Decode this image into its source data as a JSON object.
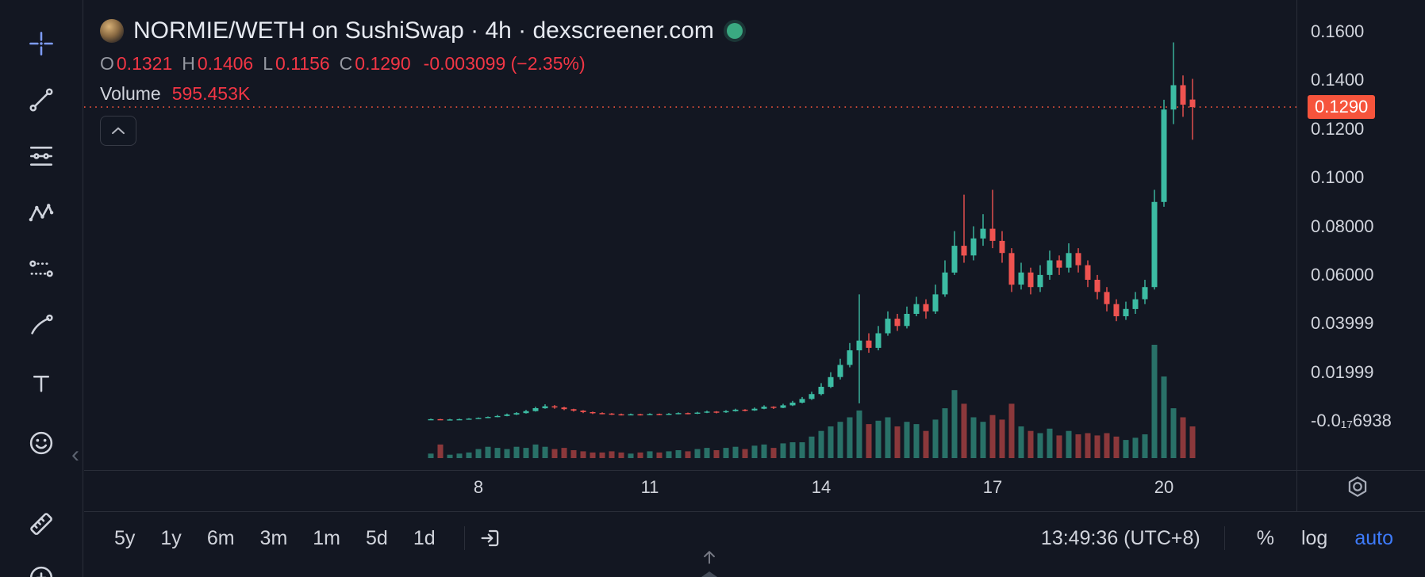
{
  "colors": {
    "bg": "#131722",
    "border": "#2a2e39",
    "text": "#d1d4dc",
    "text_dim": "#9598a1",
    "text_bright": "#e6e9f0",
    "up": "#3cbca3",
    "down": "#ef5350",
    "value_red": "#f23645",
    "accent_red": "#f6543c",
    "accent_blue": "#3e7bfa",
    "status_dot": "#3aa981",
    "tool_active": "#7e9cf7"
  },
  "header": {
    "title": "NORMIE/WETH on SushiSwap · 4h · dexscreener.com",
    "ohlc": [
      {
        "label": "O",
        "value": "0.1321"
      },
      {
        "label": "H",
        "value": "0.1406"
      },
      {
        "label": "L",
        "value": "0.1156"
      },
      {
        "label": "C",
        "value": "0.1290"
      }
    ],
    "change": "-0.003099 (−2.35%)",
    "volume_label": "Volume",
    "volume_value": "595.453K"
  },
  "left_toolbar": {
    "collapse_glyph": "‹",
    "tools": [
      {
        "name": "crosshair",
        "active": true
      },
      {
        "name": "trend-line",
        "active": false
      },
      {
        "name": "fib-retracement",
        "active": false
      },
      {
        "name": "xabcd-pattern",
        "active": false
      },
      {
        "name": "prediction-measurement",
        "active": false
      },
      {
        "name": "brush",
        "active": false
      },
      {
        "name": "text-tool",
        "active": false
      },
      {
        "name": "emoji",
        "active": false
      },
      {
        "name": "ruler",
        "active": false
      },
      {
        "name": "zoom-in",
        "active": false
      }
    ]
  },
  "toolbar": {
    "ranges": [
      "5y",
      "1y",
      "6m",
      "3m",
      "1m",
      "5d",
      "1d"
    ],
    "clock": "13:49:36 (UTC+8)",
    "percent_label": "%",
    "log_label": "log",
    "auto_label": "auto"
  },
  "chart_data": {
    "type": "candlestick",
    "title": "NORMIE/WETH on SushiSwap · 4h",
    "interval": "4h",
    "grid": false,
    "price_axis": {
      "min": 0,
      "max": 0.16,
      "ticks": [
        {
          "label": "0.1600",
          "price": 0.16
        },
        {
          "label": "0.1400",
          "price": 0.14
        },
        {
          "label": "0.1200",
          "price": 0.12
        },
        {
          "label": "0.1000",
          "price": 0.1
        },
        {
          "label": "0.08000",
          "price": 0.08
        },
        {
          "label": "0.06000",
          "price": 0.06
        },
        {
          "label": "0.03999",
          "price": 0.04
        },
        {
          "label": "0.01999",
          "price": 0.02
        },
        {
          "label": "-0.0₁₇6938",
          "price": 0.0
        }
      ]
    },
    "time_axis": {
      "ticks": [
        {
          "label": "8",
          "day": 8
        },
        {
          "label": "11",
          "day": 11
        },
        {
          "label": "14",
          "day": 14
        },
        {
          "label": "17",
          "day": 17
        },
        {
          "label": "20",
          "day": 20
        }
      ]
    },
    "current_price": {
      "label": "0.1290",
      "price": 0.129
    },
    "day_start": 7.1667,
    "candles_per_day": 6,
    "candles": [
      [
        0.0005,
        0.0009,
        0.0004,
        0.0007,
        4
      ],
      [
        0.0007,
        0.0008,
        0.0004,
        0.0005,
        12
      ],
      [
        0.0005,
        0.0008,
        0.0004,
        0.0006,
        3
      ],
      [
        0.0006,
        0.0009,
        0.0005,
        0.0007,
        4
      ],
      [
        0.0007,
        0.0011,
        0.0006,
        0.0009,
        5
      ],
      [
        0.0009,
        0.0014,
        0.0008,
        0.0012,
        8
      ],
      [
        0.0012,
        0.0018,
        0.0011,
        0.0016,
        10
      ],
      [
        0.0016,
        0.0024,
        0.0015,
        0.002,
        9
      ],
      [
        0.002,
        0.003,
        0.0019,
        0.0026,
        8
      ],
      [
        0.0026,
        0.0036,
        0.0024,
        0.0032,
        10
      ],
      [
        0.0032,
        0.0045,
        0.003,
        0.004,
        9
      ],
      [
        0.004,
        0.0058,
        0.0038,
        0.0052,
        12
      ],
      [
        0.0052,
        0.0068,
        0.005,
        0.006,
        10
      ],
      [
        0.006,
        0.0065,
        0.005,
        0.0055,
        8
      ],
      [
        0.0055,
        0.0058,
        0.0044,
        0.0048,
        9
      ],
      [
        0.0048,
        0.005,
        0.0038,
        0.0042,
        7
      ],
      [
        0.0042,
        0.0044,
        0.0032,
        0.0036,
        6
      ],
      [
        0.0036,
        0.0038,
        0.0028,
        0.0032,
        5
      ],
      [
        0.0032,
        0.0035,
        0.0027,
        0.003,
        5
      ],
      [
        0.003,
        0.0032,
        0.0024,
        0.0027,
        6
      ],
      [
        0.0027,
        0.003,
        0.0022,
        0.0025,
        5
      ],
      [
        0.0025,
        0.003,
        0.0023,
        0.0027,
        4
      ],
      [
        0.0027,
        0.0029,
        0.0022,
        0.0025,
        5
      ],
      [
        0.0025,
        0.0031,
        0.0024,
        0.0028,
        6
      ],
      [
        0.0028,
        0.003,
        0.0023,
        0.0026,
        5
      ],
      [
        0.0026,
        0.0032,
        0.0024,
        0.0029,
        6
      ],
      [
        0.0029,
        0.0035,
        0.0027,
        0.0032,
        7
      ],
      [
        0.0032,
        0.0034,
        0.0027,
        0.003,
        6
      ],
      [
        0.003,
        0.0037,
        0.0028,
        0.0034,
        8
      ],
      [
        0.0034,
        0.0042,
        0.0032,
        0.0038,
        9
      ],
      [
        0.0038,
        0.004,
        0.0031,
        0.0035,
        7
      ],
      [
        0.0035,
        0.0044,
        0.0033,
        0.004,
        9
      ],
      [
        0.004,
        0.005,
        0.0038,
        0.0046,
        10
      ],
      [
        0.0046,
        0.0048,
        0.0039,
        0.0043,
        8
      ],
      [
        0.0043,
        0.0055,
        0.0041,
        0.005,
        11
      ],
      [
        0.005,
        0.0064,
        0.0048,
        0.0058,
        12
      ],
      [
        0.0058,
        0.006,
        0.0049,
        0.0054,
        9
      ],
      [
        0.0054,
        0.007,
        0.0052,
        0.0064,
        13
      ],
      [
        0.0064,
        0.0082,
        0.0061,
        0.0075,
        14
      ],
      [
        0.0075,
        0.0098,
        0.0072,
        0.009,
        14
      ],
      [
        0.009,
        0.012,
        0.0086,
        0.011,
        19
      ],
      [
        0.011,
        0.0155,
        0.0105,
        0.014,
        24
      ],
      [
        0.014,
        0.02,
        0.0135,
        0.018,
        28
      ],
      [
        0.018,
        0.0255,
        0.017,
        0.023,
        32
      ],
      [
        0.023,
        0.032,
        0.022,
        0.029,
        36
      ],
      [
        0.029,
        0.052,
        0.0072,
        0.033,
        42
      ],
      [
        0.033,
        0.036,
        0.028,
        0.03,
        30
      ],
      [
        0.03,
        0.039,
        0.029,
        0.036,
        33
      ],
      [
        0.036,
        0.045,
        0.035,
        0.042,
        36
      ],
      [
        0.042,
        0.044,
        0.037,
        0.039,
        28
      ],
      [
        0.039,
        0.047,
        0.038,
        0.044,
        32
      ],
      [
        0.044,
        0.051,
        0.043,
        0.048,
        30
      ],
      [
        0.048,
        0.05,
        0.042,
        0.045,
        24
      ],
      [
        0.045,
        0.056,
        0.044,
        0.052,
        34
      ],
      [
        0.052,
        0.066,
        0.051,
        0.061,
        44
      ],
      [
        0.061,
        0.078,
        0.06,
        0.072,
        60
      ],
      [
        0.072,
        0.093,
        0.065,
        0.068,
        48
      ],
      [
        0.068,
        0.08,
        0.066,
        0.075,
        36
      ],
      [
        0.075,
        0.085,
        0.072,
        0.079,
        32
      ],
      [
        0.079,
        0.095,
        0.071,
        0.074,
        38
      ],
      [
        0.074,
        0.078,
        0.065,
        0.069,
        34
      ],
      [
        0.069,
        0.071,
        0.053,
        0.056,
        48
      ],
      [
        0.056,
        0.065,
        0.054,
        0.061,
        28
      ],
      [
        0.061,
        0.063,
        0.052,
        0.055,
        24
      ],
      [
        0.055,
        0.064,
        0.053,
        0.06,
        22
      ],
      [
        0.06,
        0.07,
        0.058,
        0.066,
        26
      ],
      [
        0.066,
        0.068,
        0.06,
        0.063,
        20
      ],
      [
        0.063,
        0.073,
        0.061,
        0.069,
        24
      ],
      [
        0.069,
        0.071,
        0.061,
        0.064,
        21
      ],
      [
        0.064,
        0.066,
        0.055,
        0.058,
        22
      ],
      [
        0.058,
        0.06,
        0.05,
        0.053,
        20
      ],
      [
        0.053,
        0.055,
        0.045,
        0.048,
        22
      ],
      [
        0.048,
        0.05,
        0.041,
        0.043,
        19
      ],
      [
        0.043,
        0.049,
        0.0415,
        0.046,
        16
      ],
      [
        0.046,
        0.053,
        0.044,
        0.05,
        18
      ],
      [
        0.05,
        0.058,
        0.048,
        0.055,
        21
      ],
      [
        0.055,
        0.095,
        0.054,
        0.09,
        100
      ],
      [
        0.09,
        0.132,
        0.088,
        0.128,
        72
      ],
      [
        0.128,
        0.1556,
        0.122,
        0.138,
        44
      ],
      [
        0.138,
        0.142,
        0.125,
        0.13,
        36
      ],
      [
        0.1321,
        0.1406,
        0.1156,
        0.129,
        28
      ]
    ]
  }
}
